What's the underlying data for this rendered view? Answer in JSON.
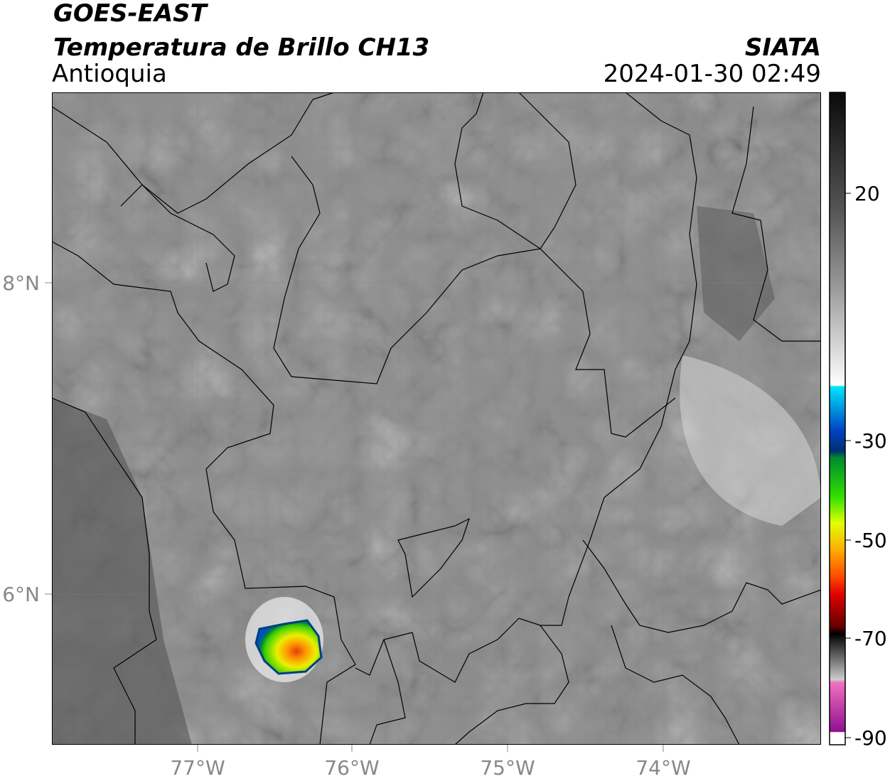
{
  "header": {
    "line1": "GOES-EAST",
    "line2": "Temperatura de Brillo CH13",
    "region": "Antioquia",
    "agency": "SIATA",
    "datetime": "2024-01-30 02:49"
  },
  "map": {
    "lat_labels": [
      "8°N",
      "6°N"
    ],
    "lon_labels": [
      "77°W",
      "76°W",
      "75°W",
      "74°W"
    ]
  },
  "colorbar": {
    "ticks": [
      20,
      -30,
      -50,
      -70,
      -90
    ]
  }
}
